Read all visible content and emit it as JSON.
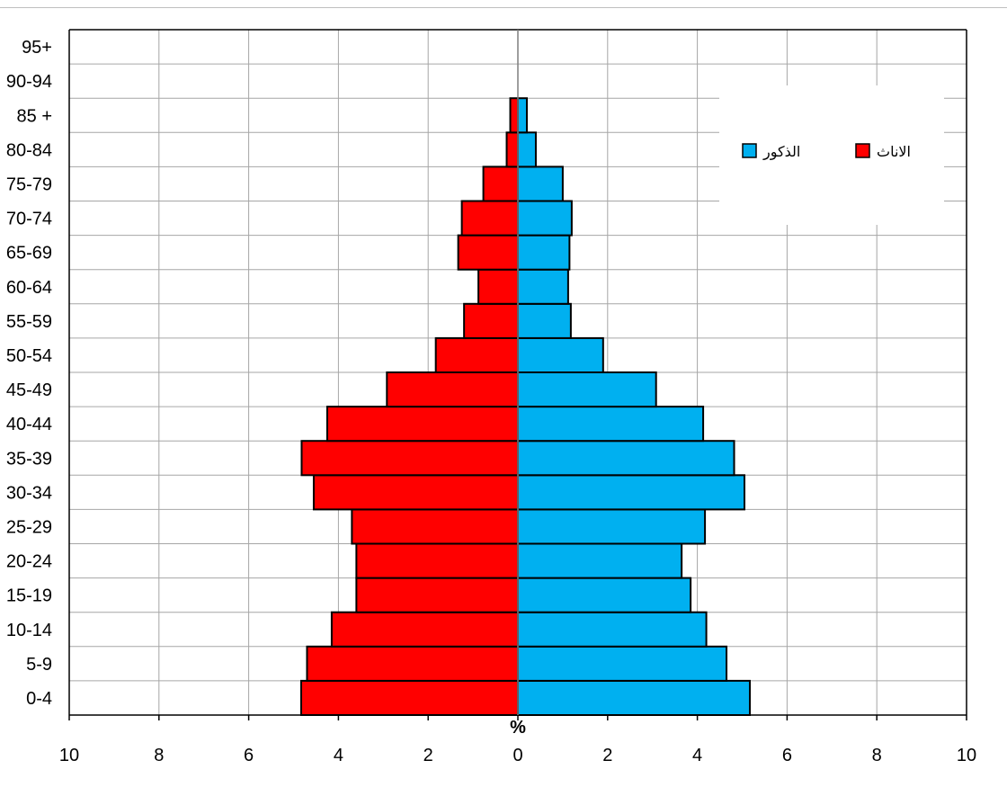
{
  "chart_data": {
    "type": "bar",
    "orientation": "horizontal",
    "categories": [
      "0-4",
      "5-9",
      "10-14",
      "15-19",
      "20-24",
      "25-29",
      "30-34",
      "35-39",
      "40-44",
      "45-49",
      "50-54",
      "55-59",
      "60-64",
      "65-69",
      "70-74",
      "75-79",
      "80-84",
      "85 +",
      "90-94",
      "95+"
    ],
    "series": [
      {
        "name": "الاناث",
        "side": "left",
        "color": "#ff0000",
        "values": [
          4.83,
          4.7,
          4.15,
          3.6,
          3.6,
          3.7,
          4.55,
          4.82,
          4.25,
          2.92,
          1.83,
          1.2,
          0.88,
          1.33,
          1.25,
          0.77,
          0.25,
          0.17,
          0,
          0
        ]
      },
      {
        "name": "الذكور",
        "side": "right",
        "color": "#00b0f0",
        "values": [
          5.17,
          4.65,
          4.2,
          3.85,
          3.65,
          4.17,
          5.05,
          4.82,
          4.13,
          3.08,
          1.9,
          1.18,
          1.12,
          1.15,
          1.2,
          1.0,
          0.4,
          0.2,
          0,
          0
        ]
      }
    ],
    "xlabel": "%",
    "xlim": [
      -10,
      10
    ],
    "xticks": [
      "10",
      "8",
      "6",
      "4",
      "2",
      "0",
      "2",
      "4",
      "6",
      "8",
      "10"
    ],
    "grid": true,
    "legend_position": "top-right"
  },
  "legend": {
    "female_label": "الاناث",
    "male_label": "الذكور"
  }
}
